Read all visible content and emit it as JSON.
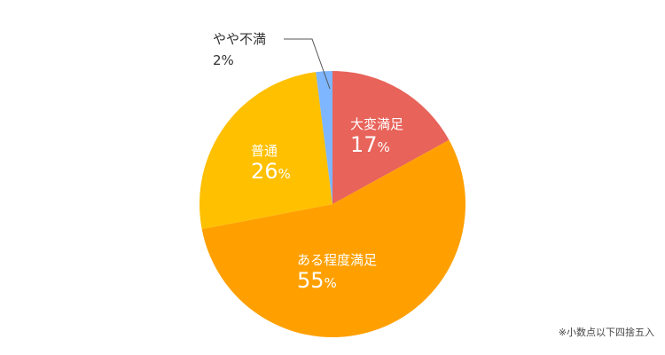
{
  "chart_data": {
    "type": "pie",
    "start": "top",
    "direction": "clockwise",
    "slices": [
      {
        "name": "大変満足",
        "value": 17,
        "color": "#E8635A",
        "label_inside": true
      },
      {
        "name": "ある程度満足",
        "value": 55,
        "color": "#FFA000",
        "label_inside": true
      },
      {
        "name": "普通",
        "value": 26,
        "color": "#FFC000",
        "label_inside": true
      },
      {
        "name": "やや不満",
        "value": 2,
        "color": "#7EB6FF",
        "label_inside": false
      }
    ],
    "unit": "%",
    "note": "※小数点以下四捨五入"
  }
}
